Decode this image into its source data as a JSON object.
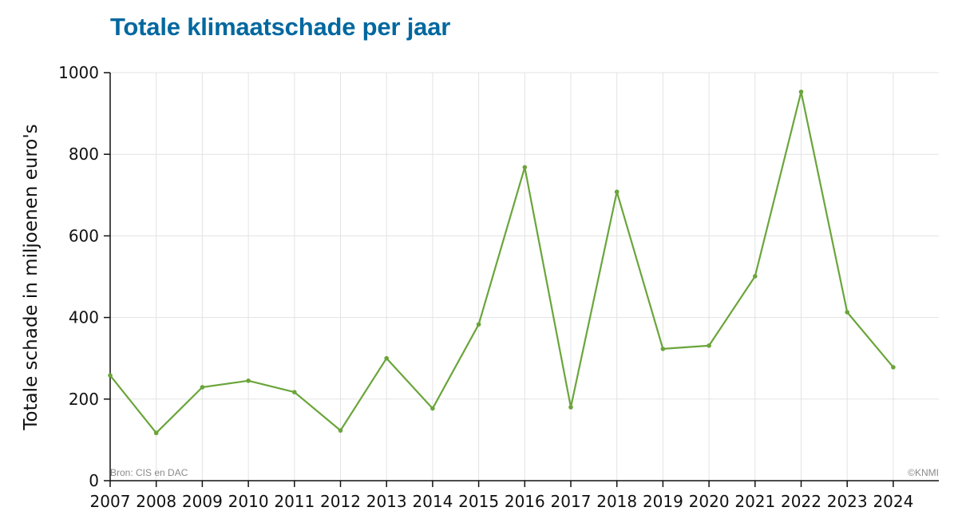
{
  "chart_data": {
    "type": "line",
    "title": "Totale klimaatschade per jaar",
    "ylabel": "Totale schade in miljoenen euro's",
    "xlabel": "",
    "x": [
      2007,
      2008,
      2009,
      2010,
      2011,
      2012,
      2013,
      2014,
      2015,
      2016,
      2017,
      2018,
      2019,
      2020,
      2021,
      2022,
      2023,
      2024
    ],
    "series": [
      {
        "values": [
          258,
          117,
          229,
          245,
          217,
          123,
          300,
          177,
          383,
          768,
          180,
          708,
          323,
          331,
          501,
          953,
          413,
          278
        ],
        "color": "#6aa53a"
      }
    ],
    "ylim": [
      0,
      1000
    ],
    "yticks": [
      0,
      200,
      400,
      600,
      800,
      1000
    ],
    "grid": true,
    "source": "Bron: CIS en DAC",
    "credit": "©KNMI"
  }
}
